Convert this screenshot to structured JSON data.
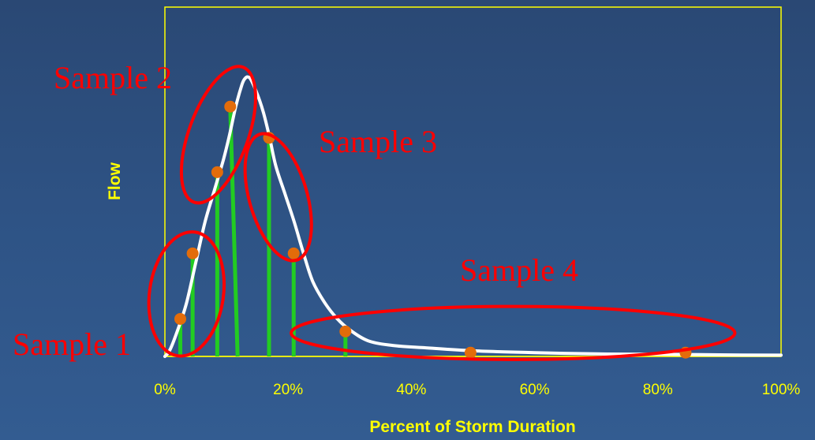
{
  "chart_data": {
    "type": "line",
    "title": "",
    "xlabel": "Percent of Storm Duration",
    "ylabel": "Flow",
    "xlim": [
      0,
      100
    ],
    "ylim": [
      0,
      100
    ],
    "x_ticks": [
      "0%",
      "20%",
      "40%",
      "60%",
      "80%",
      "100%"
    ],
    "x_tick_values": [
      0,
      20,
      40,
      60,
      80,
      100
    ],
    "grid": false,
    "legend": "none",
    "series": [
      {
        "values": [
          [
            0,
            0
          ],
          [
            0.8,
            2
          ],
          [
            2,
            8
          ],
          [
            3.5,
            17
          ],
          [
            5,
            30
          ],
          [
            6.5,
            43
          ],
          [
            8,
            53
          ],
          [
            9.5,
            63
          ],
          [
            10.5,
            71
          ],
          [
            11.5,
            80
          ],
          [
            12.5,
            87
          ],
          [
            13,
            89
          ],
          [
            13.5,
            89.5
          ],
          [
            14,
            88.5
          ],
          [
            15,
            84
          ],
          [
            16,
            78
          ],
          [
            17,
            70
          ],
          [
            18,
            61
          ],
          [
            19.5,
            52
          ],
          [
            21,
            43
          ],
          [
            22.5,
            33
          ],
          [
            24,
            24
          ],
          [
            26,
            17
          ],
          [
            28,
            12
          ],
          [
            30,
            8.5
          ],
          [
            33,
            5
          ],
          [
            37,
            3.5
          ],
          [
            42,
            2.8
          ],
          [
            50,
            1.8
          ],
          [
            60,
            1.2
          ],
          [
            70,
            0.8
          ],
          [
            80,
            0.7
          ],
          [
            90,
            0.5
          ],
          [
            100,
            0.4
          ]
        ]
      }
    ],
    "samples": [
      {
        "x": 2.5,
        "y": 12
      },
      {
        "x": 4.5,
        "y": 33
      },
      {
        "x": 8.5,
        "y": 59
      },
      {
        "x": 10.6,
        "y": 80
      },
      {
        "x": 16.9,
        "y": 70
      },
      {
        "x": 20.9,
        "y": 33
      },
      {
        "x": 29.3,
        "y": 8
      },
      {
        "x": 49.6,
        "y": 1.2
      },
      {
        "x": 84.5,
        "y": 1.2
      }
    ],
    "sample_bars": [
      {
        "x_top": 2.5,
        "x_bottom": 2.5,
        "y": 12
      },
      {
        "x_top": 4.5,
        "x_bottom": 4.5,
        "y": 33
      },
      {
        "x_top": 8.5,
        "x_bottom": 8.5,
        "y": 59
      },
      {
        "x_top": 10.6,
        "x_bottom": 11.8,
        "y": 80
      },
      {
        "x_top": 16.9,
        "x_bottom": 16.9,
        "y": 70
      },
      {
        "x_top": 20.9,
        "x_bottom": 20.9,
        "y": 33
      },
      {
        "x_top": 29.3,
        "x_bottom": 29.3,
        "y": 8
      }
    ],
    "groups": [
      {
        "name": "Sample 1",
        "cx": 3.5,
        "cy": 20,
        "rx": 6,
        "ry": 20,
        "rotate": 8
      },
      {
        "name": "Sample 2",
        "cx": 8.7,
        "cy": 71,
        "rx": 4.8,
        "ry": 23,
        "rotate": 20
      },
      {
        "name": "Sample 3",
        "cx": 18.4,
        "cy": 51,
        "rx": 4.7,
        "ry": 21,
        "rotate": -16
      },
      {
        "name": "Sample 4",
        "cx": 56.5,
        "cy": 7.5,
        "rx": 36,
        "ry": 8.5,
        "rotate": 0
      }
    ],
    "colors": {
      "curve": "#ffffff",
      "bars": "#22cc22",
      "points": "#e36c0a",
      "groups": "#ff0000",
      "frame": "#ffff00",
      "text": "#ffff00"
    }
  }
}
